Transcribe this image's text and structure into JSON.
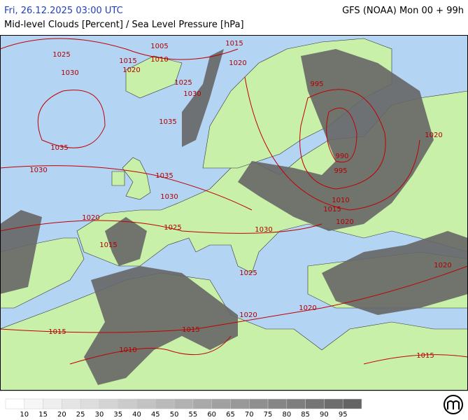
{
  "header": {
    "valid_time": "Fri, 26.12.2025 03:00 UTC",
    "model_run": "GFS (NOAA) Mon 00 + 99h",
    "subtitle": "Mid-level Clouds [Percent] / Sea Level Pressure [hPa]"
  },
  "isobar_labels": [
    "1025",
    "1030",
    "1005",
    "1015",
    "1020",
    "1010",
    "1015",
    "1020",
    "1025",
    "1030",
    "995",
    "1035",
    "1035",
    "1030",
    "1035",
    "1030",
    "990",
    "995",
    "1010",
    "1015",
    "1020",
    "1020",
    "1020",
    "1025",
    "1015",
    "1030",
    "1025",
    "1020",
    "1020",
    "1020",
    "1015",
    "1015",
    "1010",
    "1015"
  ],
  "legend": {
    "labels": [
      10,
      15,
      20,
      25,
      30,
      35,
      40,
      45,
      50,
      55,
      60,
      65,
      70,
      75,
      80,
      85,
      90,
      95
    ]
  }
}
